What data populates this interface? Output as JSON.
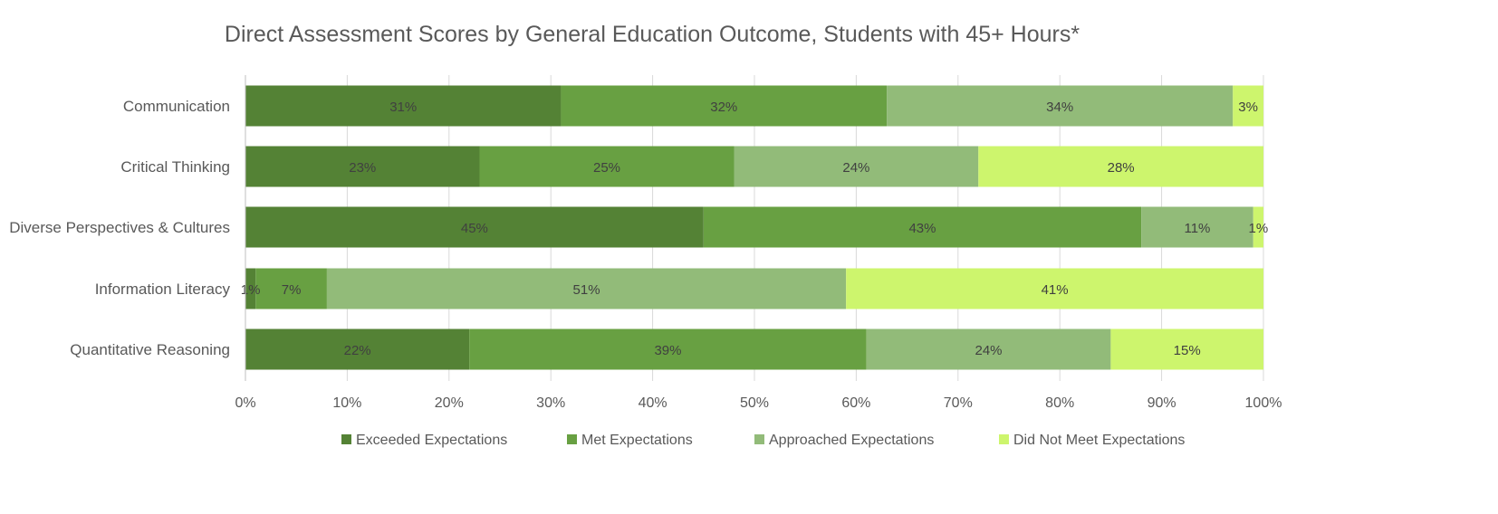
{
  "chart_data": {
    "type": "bar",
    "orientation": "horizontal",
    "stacked": "percent",
    "title": "Direct Assessment Scores by General Education Outcome, Students with 45+ Hours*",
    "categories": [
      "Communication",
      "Critical Thinking",
      "Diverse Perspectives & Cultures",
      "Information Literacy",
      "Quantitative Reasoning"
    ],
    "series": [
      {
        "name": "Exceeded Expectations",
        "color": "#548235",
        "values": [
          31,
          23,
          45,
          1,
          22
        ]
      },
      {
        "name": "Met Expectations",
        "color": "#68a042",
        "values": [
          32,
          25,
          43,
          7,
          39
        ]
      },
      {
        "name": "Approached Expectations",
        "color": "#92bb79",
        "values": [
          34,
          24,
          11,
          51,
          24
        ]
      },
      {
        "name": "Did Not Meet Expectations",
        "color": "#cdf56d",
        "values": [
          3,
          28,
          1,
          41,
          15
        ]
      }
    ],
    "data_labels": [
      [
        "31%",
        "32%",
        "34%",
        "3%"
      ],
      [
        "23%",
        "25%",
        "24%",
        "28%"
      ],
      [
        "45%",
        "43%",
        "11%",
        "1%"
      ],
      [
        "1%",
        "7%",
        "51%",
        "41%"
      ],
      [
        "22%",
        "39%",
        "24%",
        "15%"
      ]
    ],
    "x_ticks": [
      "0%",
      "10%",
      "20%",
      "30%",
      "40%",
      "50%",
      "60%",
      "70%",
      "80%",
      "90%",
      "100%"
    ],
    "xlim": [
      0,
      100
    ],
    "grid": "vertical",
    "legend_position": "bottom"
  }
}
